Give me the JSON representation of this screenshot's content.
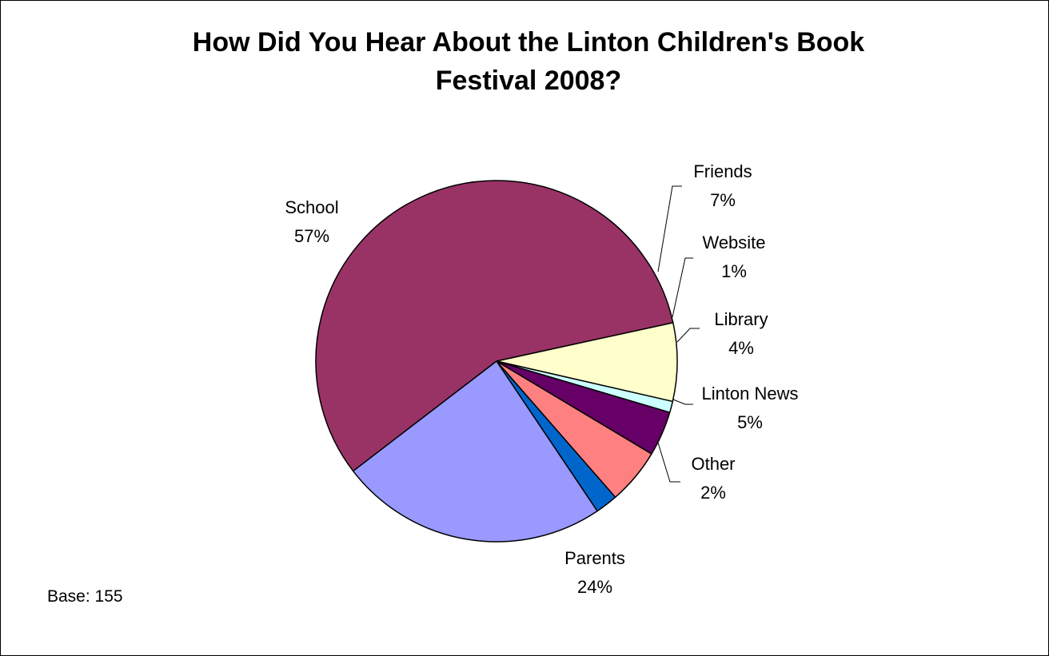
{
  "chart_data": {
    "type": "pie",
    "title_lines": [
      "How Did You Hear About the Linton Children's Book",
      "Festival 2008?"
    ],
    "note": "Base: 155",
    "legend": "none",
    "slices": [
      {
        "label": "School",
        "percent_label": "57%",
        "value": 57,
        "color": "#993366"
      },
      {
        "label": "Friends",
        "percent_label": "7%",
        "value": 7,
        "color": "#FFFFCC"
      },
      {
        "label": "Website",
        "percent_label": "1%",
        "value": 1,
        "color": "#CCFFFF"
      },
      {
        "label": "Library",
        "percent_label": "4%",
        "value": 4,
        "color": "#660066"
      },
      {
        "label": "Linton News",
        "percent_label": "5%",
        "value": 5,
        "color": "#FF8080"
      },
      {
        "label": "Other",
        "percent_label": "2%",
        "value": 2,
        "color": "#0066CC"
      },
      {
        "label": "Parents",
        "percent_label": "24%",
        "value": 24,
        "color": "#9999FF"
      }
    ]
  }
}
